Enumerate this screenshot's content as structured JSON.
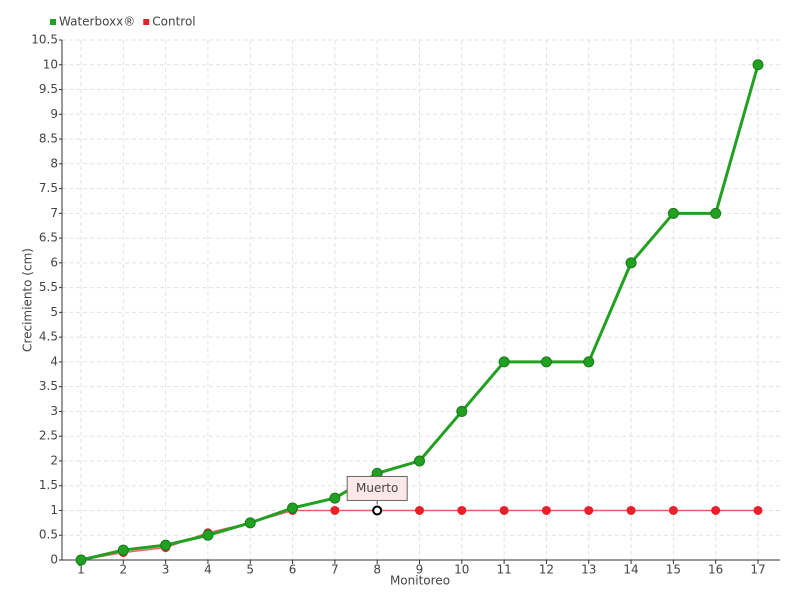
{
  "chart_data": {
    "type": "line",
    "x_label": "Monitoreo",
    "y_label": "Crecimiento (cm)",
    "categories": [
      "1",
      "2",
      "3",
      "4",
      "5",
      "6",
      "7",
      "8",
      "9",
      "10",
      "11",
      "12",
      "13",
      "14",
      "15",
      "16",
      "17"
    ],
    "series": [
      {
        "name": "Waterboxx®",
        "color": "#22a022",
        "values": [
          0,
          0.2,
          0.3,
          0.5,
          0.75,
          1.05,
          1.25,
          1.75,
          2,
          3,
          4,
          4,
          4,
          6,
          7,
          7,
          10
        ]
      },
      {
        "name": "Control",
        "color": "#e8202a",
        "values": [
          0,
          0.15,
          0.25,
          0.55,
          0.75,
          1,
          1,
          1,
          1,
          1,
          1,
          1,
          1,
          1,
          1,
          1,
          1
        ]
      }
    ],
    "annotation": {
      "text": "Muerto",
      "x": "8",
      "y": 1
    },
    "ylim": [
      0,
      10.5
    ],
    "yticks": [
      0,
      0.5,
      1,
      1.5,
      2,
      2.5,
      3,
      3.5,
      4,
      4.5,
      5,
      5.5,
      6,
      6.5,
      7,
      7.5,
      8,
      8.5,
      9,
      9.5,
      10,
      10.5
    ],
    "grid": true,
    "legend": "top-left"
  }
}
